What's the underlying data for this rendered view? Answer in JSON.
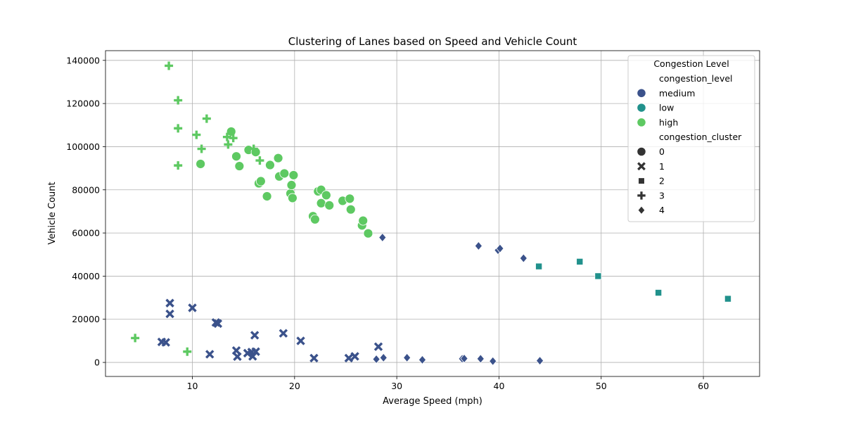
{
  "chart_data": {
    "type": "scatter",
    "title": "Clustering of Lanes based on Speed and Vehicle Count",
    "xlabel": "Average Speed (mph)",
    "ylabel": "Vehicle Count",
    "xlim": [
      1.5,
      65.5
    ],
    "ylim": [
      -6500,
      144500
    ],
    "xticks": [
      10,
      20,
      30,
      40,
      50,
      60
    ],
    "xtick_labels": [
      "10",
      "20",
      "30",
      "40",
      "50",
      "60"
    ],
    "yticks": [
      0,
      20000,
      40000,
      60000,
      80000,
      100000,
      120000,
      140000
    ],
    "ytick_labels": [
      "0",
      "20000",
      "40000",
      "60000",
      "80000",
      "100000",
      "120000",
      "140000"
    ],
    "grid": true,
    "legend": {
      "title": "Congestion Level",
      "placement": "top-right",
      "hue_title": "congestion_level",
      "hue_entries": [
        {
          "label": "medium",
          "color": "#3b528b"
        },
        {
          "label": "low",
          "color": "#21918c"
        },
        {
          "label": "high",
          "color": "#5ec962"
        }
      ],
      "style_title": "congestion_cluster",
      "style_entries": [
        {
          "label": "0",
          "marker": "circle"
        },
        {
          "label": "1",
          "marker": "x"
        },
        {
          "label": "2",
          "marker": "square"
        },
        {
          "label": "3",
          "marker": "plus"
        },
        {
          "label": "4",
          "marker": "diamond"
        }
      ]
    },
    "series": [
      {
        "congestion_level": "high",
        "congestion_cluster": "0",
        "color": "#5ec962",
        "marker": "circle",
        "points": [
          [
            10.8,
            92000
          ],
          [
            13.8,
            107000
          ],
          [
            14.3,
            95500
          ],
          [
            14.6,
            91000
          ],
          [
            15.5,
            98500
          ],
          [
            16.2,
            97500
          ],
          [
            16.5,
            83000
          ],
          [
            16.7,
            84000
          ],
          [
            17.3,
            77000
          ],
          [
            17.6,
            91500
          ],
          [
            18.4,
            94700
          ],
          [
            18.5,
            86200
          ],
          [
            19.0,
            87600
          ],
          [
            19.6,
            78300
          ],
          [
            19.7,
            82200
          ],
          [
            19.8,
            76200
          ],
          [
            19.9,
            86800
          ],
          [
            21.8,
            67800
          ],
          [
            22.0,
            66300
          ],
          [
            22.3,
            79300
          ],
          [
            22.6,
            80000
          ],
          [
            22.6,
            73800
          ],
          [
            23.1,
            77500
          ],
          [
            23.4,
            72800
          ],
          [
            24.7,
            74900
          ],
          [
            25.4,
            75900
          ],
          [
            25.5,
            70900
          ],
          [
            26.6,
            63500
          ],
          [
            26.7,
            65700
          ],
          [
            27.2,
            59800
          ]
        ]
      },
      {
        "congestion_level": "high",
        "congestion_cluster": "3",
        "color": "#5ec962",
        "marker": "plus",
        "points": [
          [
            7.7,
            137500
          ],
          [
            8.6,
            121500
          ],
          [
            8.6,
            108500
          ],
          [
            8.6,
            91300
          ],
          [
            10.4,
            105500
          ],
          [
            10.9,
            99000
          ],
          [
            11.4,
            113000
          ],
          [
            13.4,
            104500
          ],
          [
            13.5,
            101000
          ],
          [
            14.0,
            104000
          ],
          [
            16.0,
            99000
          ],
          [
            16.6,
            93600
          ],
          [
            4.4,
            11300
          ],
          [
            9.5,
            5000
          ]
        ]
      },
      {
        "congestion_level": "medium",
        "congestion_cluster": "1",
        "color": "#3b528b",
        "marker": "x",
        "points": [
          [
            7.0,
            9500
          ],
          [
            7.4,
            9300
          ],
          [
            7.8,
            27500
          ],
          [
            7.8,
            22500
          ],
          [
            10.0,
            25300
          ],
          [
            11.7,
            3800
          ],
          [
            12.3,
            18500
          ],
          [
            12.5,
            18000
          ],
          [
            14.3,
            5500
          ],
          [
            14.4,
            2700
          ],
          [
            15.4,
            4300
          ],
          [
            15.8,
            4800
          ],
          [
            15.9,
            2800
          ],
          [
            16.1,
            12600
          ],
          [
            16.2,
            5000
          ],
          [
            18.9,
            13500
          ],
          [
            20.6,
            10000
          ],
          [
            21.9,
            2000
          ],
          [
            25.3,
            2000
          ],
          [
            25.9,
            2800
          ],
          [
            28.2,
            7300
          ]
        ]
      },
      {
        "congestion_level": "medium",
        "congestion_cluster": "4",
        "color": "#3b528b",
        "marker": "diamond",
        "points": [
          [
            28.0,
            1500
          ],
          [
            28.7,
            2200
          ],
          [
            28.6,
            57900
          ],
          [
            31.0,
            2200
          ],
          [
            32.5,
            1200
          ],
          [
            36.4,
            1700
          ],
          [
            36.6,
            1800
          ],
          [
            38.0,
            54000
          ],
          [
            38.2,
            1700
          ],
          [
            39.4,
            600
          ],
          [
            39.9,
            52000
          ],
          [
            40.1,
            52800
          ],
          [
            42.4,
            48300
          ],
          [
            44.0,
            800
          ]
        ]
      },
      {
        "congestion_level": "low",
        "congestion_cluster": "2",
        "color": "#21918c",
        "marker": "square",
        "points": [
          [
            43.9,
            44500
          ],
          [
            47.9,
            46700
          ],
          [
            49.7,
            40000
          ],
          [
            55.6,
            32300
          ],
          [
            62.4,
            29500
          ]
        ]
      }
    ]
  }
}
